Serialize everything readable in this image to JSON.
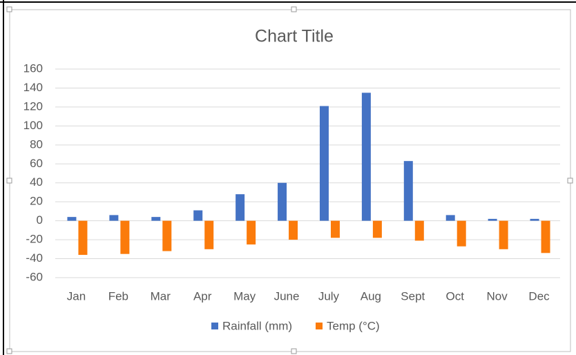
{
  "chart_data": {
    "type": "bar",
    "title": "Chart Title",
    "categories": [
      "Jan",
      "Feb",
      "Mar",
      "Apr",
      "May",
      "June",
      "July",
      "Aug",
      "Sept",
      "Oct",
      "Nov",
      "Dec"
    ],
    "series": [
      {
        "name": "Rainfall (mm)",
        "color": "#4472c4",
        "values": [
          4,
          6,
          4,
          11,
          28,
          40,
          121,
          135,
          63,
          6,
          2,
          2
        ]
      },
      {
        "name": "Temp (°C)",
        "color": "#fb7b0b",
        "values": [
          -36,
          -35,
          -32,
          -30,
          -25,
          -20,
          -18,
          -18,
          -21,
          -27,
          -30,
          -34
        ]
      }
    ],
    "ylim": [
      -60,
      160
    ],
    "yticks": [
      -60,
      -40,
      -20,
      0,
      20,
      40,
      60,
      80,
      100,
      120,
      140,
      160
    ],
    "grid": true,
    "legend": "bottom"
  }
}
